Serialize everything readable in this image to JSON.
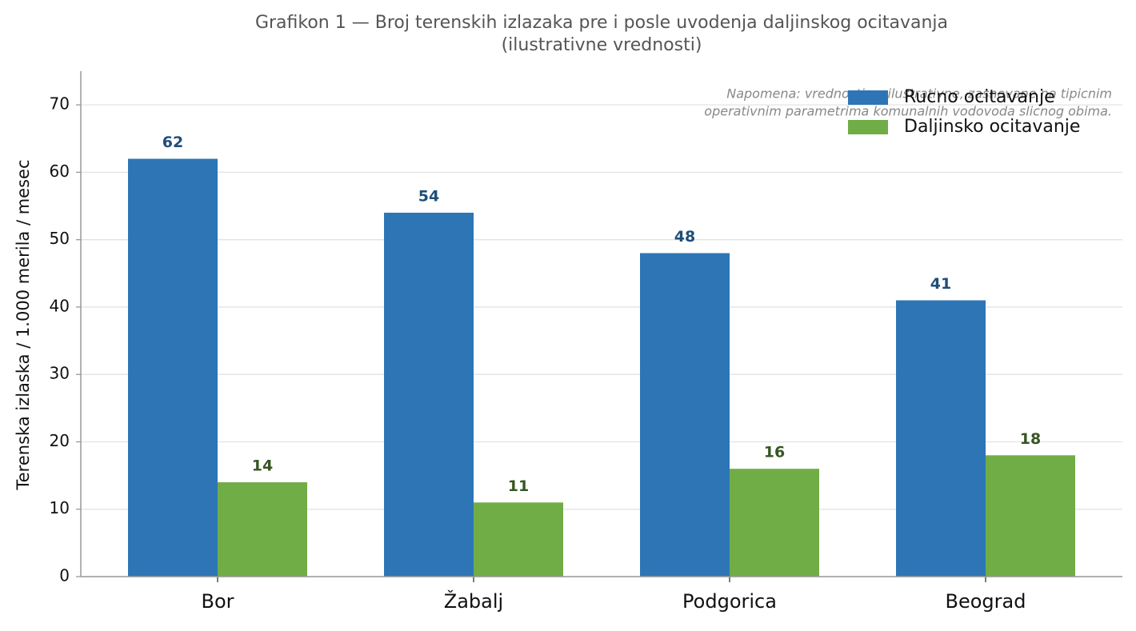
{
  "chart_data": {
    "type": "bar",
    "title": [
      "Grafikon 1 — Broj terenskih izlazaka pre i posle uvodenja daljinskog ocitavanja",
      "(ilustrativne vrednosti)"
    ],
    "annotation": [
      "Napomena: vrednosti su ilustrativne, zasnovane na tipicnim",
      "operativnim parametrima komunalnih vodovoda slicnog obima."
    ],
    "ylabel": "Terenska izlaska / 1.000 merila / mesec",
    "categories": [
      "Bor",
      "Žabalj",
      "Podgorica",
      "Beograd"
    ],
    "series": [
      {
        "name": "Rucno ocitavanje",
        "color": "#2e75b6",
        "label_color": "#1f4e79",
        "values": [
          62,
          54,
          48,
          41
        ]
      },
      {
        "name": "Daljinsko ocitavanje",
        "color": "#70ad47",
        "label_color": "#375623",
        "values": [
          14,
          11,
          16,
          18
        ]
      }
    ],
    "ylim": [
      0,
      75
    ],
    "yticks": [
      0,
      10,
      20,
      30,
      40,
      50,
      60,
      70
    ],
    "grid": true,
    "legend": "upper right"
  }
}
